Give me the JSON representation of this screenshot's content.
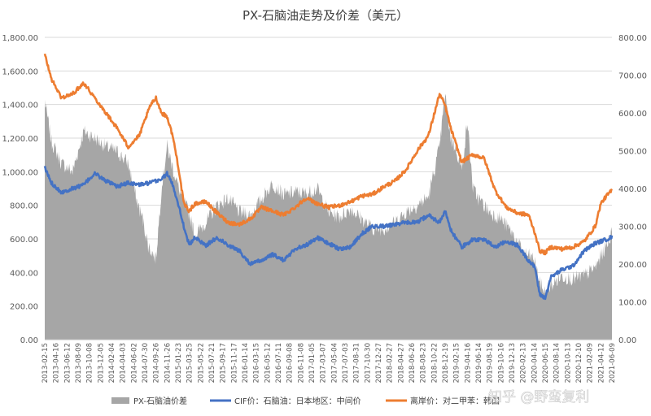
{
  "chart_data": {
    "type": "area",
    "title": "PX-石脑油走势及价差（美元）",
    "left_axis": {
      "ylim": [
        0,
        1800
      ],
      "ticks": [
        "0.00",
        "200.00",
        "400.00",
        "600.00",
        "800.00",
        "1,000.00",
        "1,200.00",
        "1,400.00",
        "1,600.00",
        "1,800.00"
      ]
    },
    "right_axis": {
      "ylim": [
        0,
        800
      ],
      "ticks": [
        "0.00",
        "100.00",
        "200.00",
        "300.00",
        "400.00",
        "500.00",
        "600.00",
        "700.00",
        "800.00"
      ]
    },
    "grid": true,
    "legend_position": "bottom",
    "x_ticks": [
      "2013-02-15",
      "2013-04-16",
      "2013-06-12",
      "2013-08-09",
      "2013-10-08",
      "2013-12-05",
      "2014-02-04",
      "2014-04-03",
      "2014-06-02",
      "2014-07-30",
      "2014-09-26",
      "2014-11-26",
      "2015-01-23",
      "2015-03-25",
      "2015-05-22",
      "2015-07-21",
      "2015-09-17",
      "2015-11-17",
      "2016-01-14",
      "2016-03-15",
      "2016-05-12",
      "2016-07-11",
      "2016-09-08",
      "2016-11-08",
      "2017-01-05",
      "2017-03-07",
      "2017-05-04",
      "2017-07-03",
      "2017-08-31",
      "2017-10-30",
      "2017-12-27",
      "2018-02-27",
      "2018-04-27",
      "2018-06-26",
      "2018-08-23",
      "2018-10-22",
      "2018-12-19",
      "2019-02-15",
      "2019-04-16",
      "2019-06-14",
      "2019-08-19",
      "2019-10-16",
      "2019-12-13",
      "2020-02-13",
      "2020-04-14",
      "2020-06-15",
      "2020-08-14",
      "2020-10-13",
      "2020-12-10",
      "2021-02-09",
      "2021-04-12",
      "2021-06-09"
    ],
    "series": [
      {
        "name": "PX-石脑油价差",
        "axis": "left",
        "color": "#a6a6a6",
        "points": [
          [
            0,
            1420
          ],
          [
            0.6,
            1180
          ],
          [
            1.5,
            1050
          ],
          [
            2.5,
            1000
          ],
          [
            3.5,
            1240
          ],
          [
            4.5,
            1200
          ],
          [
            5.5,
            1150
          ],
          [
            6.5,
            1120
          ],
          [
            7.5,
            1050
          ],
          [
            8.3,
            820
          ],
          [
            8.8,
            720
          ],
          [
            9.3,
            560
          ],
          [
            10,
            480
          ],
          [
            10.5,
            900
          ],
          [
            11,
            1150
          ],
          [
            11.6,
            1000
          ],
          [
            12.2,
            870
          ],
          [
            13,
            750
          ],
          [
            13.5,
            620
          ],
          [
            14.5,
            700
          ],
          [
            15.5,
            800
          ],
          [
            16.5,
            840
          ],
          [
            17.5,
            760
          ],
          [
            18.5,
            740
          ],
          [
            19.5,
            840
          ],
          [
            20.5,
            930
          ],
          [
            21.5,
            860
          ],
          [
            22.5,
            880
          ],
          [
            23.5,
            870
          ],
          [
            24.5,
            900
          ],
          [
            25.5,
            760
          ],
          [
            26.5,
            730
          ],
          [
            27.5,
            780
          ],
          [
            28.5,
            720
          ],
          [
            29.5,
            660
          ],
          [
            30.5,
            660
          ],
          [
            31.5,
            700
          ],
          [
            32.5,
            760
          ],
          [
            33.5,
            800
          ],
          [
            34.5,
            850
          ],
          [
            35.5,
            1150
          ],
          [
            36,
            1460
          ],
          [
            36.5,
            1200
          ],
          [
            37,
            1130
          ],
          [
            37.5,
            1010
          ],
          [
            38,
            1300
          ],
          [
            38.5,
            900
          ],
          [
            39,
            840
          ],
          [
            40,
            760
          ],
          [
            41,
            720
          ],
          [
            42,
            640
          ],
          [
            43,
            520
          ],
          [
            44,
            480
          ],
          [
            44.5,
            340
          ],
          [
            45,
            280
          ],
          [
            45.5,
            320
          ],
          [
            46.5,
            380
          ],
          [
            47.5,
            360
          ],
          [
            48.5,
            380
          ],
          [
            49.5,
            430
          ],
          [
            50.5,
            560
          ],
          [
            51,
            640
          ],
          [
            51.5,
            500
          ]
        ]
      },
      {
        "name": "CIF价：石脑油：日本地区：中间价",
        "axis": "right",
        "color": "#4472c4",
        "points": [
          [
            0,
            455
          ],
          [
            0.6,
            415
          ],
          [
            1.5,
            390
          ],
          [
            2.5,
            400
          ],
          [
            3.5,
            410
          ],
          [
            4.5,
            440
          ],
          [
            5.5,
            420
          ],
          [
            6.5,
            405
          ],
          [
            7.5,
            415
          ],
          [
            8.5,
            410
          ],
          [
            9.5,
            415
          ],
          [
            10.5,
            425
          ],
          [
            11,
            440
          ],
          [
            11.5,
            410
          ],
          [
            12,
            360
          ],
          [
            12.5,
            300
          ],
          [
            13,
            250
          ],
          [
            13.5,
            270
          ],
          [
            14.5,
            250
          ],
          [
            15.5,
            270
          ],
          [
            16.5,
            250
          ],
          [
            17.5,
            235
          ],
          [
            18.5,
            200
          ],
          [
            19.5,
            210
          ],
          [
            20.5,
            225
          ],
          [
            21.5,
            210
          ],
          [
            22.5,
            240
          ],
          [
            23.5,
            250
          ],
          [
            24.5,
            270
          ],
          [
            25.5,
            255
          ],
          [
            26.5,
            240
          ],
          [
            27.5,
            245
          ],
          [
            28.5,
            280
          ],
          [
            29.5,
            300
          ],
          [
            30.5,
            300
          ],
          [
            31.5,
            305
          ],
          [
            32.5,
            310
          ],
          [
            33.5,
            310
          ],
          [
            34.5,
            330
          ],
          [
            35.5,
            310
          ],
          [
            36,
            340
          ],
          [
            36.5,
            290
          ],
          [
            37.5,
            245
          ],
          [
            38.5,
            265
          ],
          [
            39.5,
            265
          ],
          [
            40.5,
            245
          ],
          [
            41.5,
            260
          ],
          [
            42.5,
            250
          ],
          [
            43.5,
            210
          ],
          [
            44.1,
            190
          ],
          [
            44.5,
            120
          ],
          [
            45,
            110
          ],
          [
            45.5,
            165
          ],
          [
            46.5,
            185
          ],
          [
            47.5,
            195
          ],
          [
            48.5,
            235
          ],
          [
            49.5,
            255
          ],
          [
            50.5,
            265
          ],
          [
            51.5,
            280
          ]
        ]
      },
      {
        "name": "离岸价：对二甲苯：韩国",
        "axis": "right",
        "color": "#ed7d31",
        "points": [
          [
            0,
            755
          ],
          [
            0.6,
            690
          ],
          [
            1.5,
            640
          ],
          [
            2.5,
            650
          ],
          [
            3.5,
            680
          ],
          [
            4.5,
            640
          ],
          [
            5.5,
            600
          ],
          [
            6.5,
            560
          ],
          [
            7.5,
            510
          ],
          [
            8.5,
            540
          ],
          [
            9.5,
            620
          ],
          [
            10,
            640
          ],
          [
            10.5,
            600
          ],
          [
            11,
            590
          ],
          [
            11.5,
            540
          ],
          [
            12,
            460
          ],
          [
            12.5,
            360
          ],
          [
            13,
            340
          ],
          [
            13.5,
            360
          ],
          [
            14.5,
            365
          ],
          [
            15.5,
            335
          ],
          [
            16.5,
            310
          ],
          [
            17.5,
            305
          ],
          [
            18.5,
            320
          ],
          [
            19.5,
            350
          ],
          [
            20.5,
            340
          ],
          [
            21.5,
            330
          ],
          [
            22.5,
            350
          ],
          [
            23.5,
            375
          ],
          [
            24.5,
            360
          ],
          [
            25.5,
            350
          ],
          [
            26.5,
            355
          ],
          [
            27.5,
            365
          ],
          [
            28.5,
            380
          ],
          [
            29.5,
            385
          ],
          [
            30.5,
            405
          ],
          [
            31.5,
            420
          ],
          [
            32.5,
            450
          ],
          [
            33.5,
            500
          ],
          [
            34.5,
            540
          ],
          [
            35.5,
            650
          ],
          [
            36,
            620
          ],
          [
            36.5,
            560
          ],
          [
            37.5,
            470
          ],
          [
            38.5,
            490
          ],
          [
            39.5,
            480
          ],
          [
            40.5,
            395
          ],
          [
            41.5,
            350
          ],
          [
            42.5,
            335
          ],
          [
            43.5,
            330
          ],
          [
            44.1,
            280
          ],
          [
            44.5,
            235
          ],
          [
            45,
            230
          ],
          [
            45.5,
            245
          ],
          [
            46.5,
            240
          ],
          [
            47.5,
            245
          ],
          [
            48.5,
            260
          ],
          [
            49.5,
            300
          ],
          [
            50,
            360
          ],
          [
            50.5,
            380
          ],
          [
            51,
            395
          ],
          [
            51.5,
            390
          ]
        ]
      }
    ]
  },
  "watermark": "知乎 @野蛮复利"
}
